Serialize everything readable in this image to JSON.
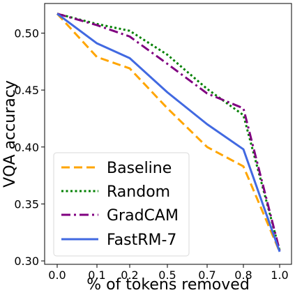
{
  "chart_data": {
    "type": "line",
    "title": "",
    "xlabel": "% of tokens removed",
    "ylabel": "VQA accuracy",
    "x": [
      "0.0",
      "0.1",
      "0.2",
      "0.5",
      "0.7",
      "0.8",
      "1.0"
    ],
    "ylim": [
      0.297,
      0.526
    ],
    "yticks": [
      "0.30",
      "0.35",
      "0.40",
      "0.45",
      "0.50"
    ],
    "ytick_values": [
      0.3,
      0.35,
      0.4,
      0.45,
      0.5
    ],
    "grid": false,
    "legend_position": "lower-left",
    "series": [
      {
        "name": "Baseline",
        "color": "#ffa500",
        "style": "dashed",
        "values": [
          0.517,
          0.479,
          0.469,
          0.434,
          0.4,
          0.383,
          0.308
        ]
      },
      {
        "name": "Random",
        "color": "#008000",
        "style": "dotted",
        "values": [
          0.517,
          0.508,
          0.502,
          0.481,
          0.451,
          0.428,
          0.309
        ]
      },
      {
        "name": "GradCAM",
        "color": "#800080",
        "style": "dashdot",
        "values": [
          0.517,
          0.507,
          0.497,
          0.473,
          0.447,
          0.434,
          0.309
        ]
      },
      {
        "name": "FastRM-7",
        "color": "#4169e1",
        "style": "solid",
        "values": [
          0.517,
          0.491,
          0.478,
          0.448,
          0.42,
          0.398,
          0.308
        ]
      }
    ]
  }
}
